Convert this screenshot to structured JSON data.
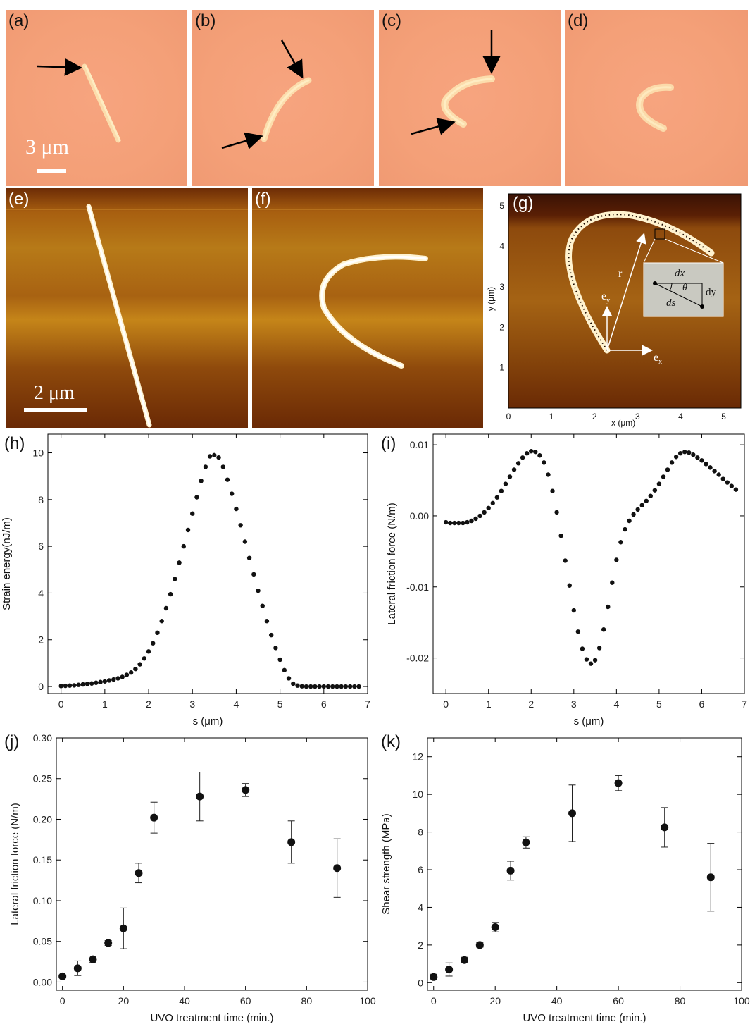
{
  "panels_top": {
    "a": {
      "label": "(a)",
      "scale": "3 μm"
    },
    "b": {
      "label": "(b)"
    },
    "c": {
      "label": "(c)"
    },
    "d": {
      "label": "(d)"
    }
  },
  "panels_mid": {
    "e": {
      "label": "(e)",
      "scale": "2 μm"
    },
    "f": {
      "label": "(f)"
    },
    "g": {
      "label": "(g)",
      "xlabel": "x (μm)",
      "ylabel": "y (μm)",
      "xticks": [
        "0",
        "1",
        "2",
        "3",
        "4",
        "5"
      ],
      "yticks": [
        "1",
        "2",
        "3",
        "4",
        "5"
      ],
      "annot_r": "r",
      "annot_ex": "e",
      "annot_ex_sub": "x",
      "annot_ey": "e",
      "annot_ey_sub": "y",
      "inset": {
        "dx": "dx",
        "dy": "dy",
        "ds": "ds",
        "theta": "θ"
      }
    }
  },
  "chart_data": [
    {
      "id": "h",
      "label": "(h)",
      "type": "scatter",
      "xlabel": "s (μm)",
      "ylabel": "Strain energy(nJ/m)",
      "xlim": [
        -0.3,
        7
      ],
      "ylim": [
        -0.3,
        10.8
      ],
      "xticks": [
        "0",
        "1",
        "2",
        "3",
        "4",
        "5",
        "6",
        "7"
      ],
      "yticks": [
        "0",
        "2",
        "4",
        "6",
        "8",
        "10"
      ],
      "x": [
        0,
        0.1,
        0.2,
        0.3,
        0.4,
        0.5,
        0.6,
        0.7,
        0.8,
        0.9,
        1.0,
        1.1,
        1.2,
        1.3,
        1.4,
        1.5,
        1.6,
        1.7,
        1.8,
        1.9,
        2.0,
        2.1,
        2.2,
        2.3,
        2.4,
        2.5,
        2.6,
        2.7,
        2.8,
        2.9,
        3.0,
        3.1,
        3.2,
        3.3,
        3.4,
        3.5,
        3.6,
        3.7,
        3.8,
        3.9,
        4.0,
        4.1,
        4.2,
        4.3,
        4.4,
        4.5,
        4.6,
        4.7,
        4.8,
        4.9,
        5.0,
        5.1,
        5.2,
        5.3,
        5.4,
        5.5,
        5.6,
        5.7,
        5.8,
        5.9,
        6.0,
        6.1,
        6.2,
        6.3,
        6.4,
        6.5,
        6.6,
        6.7,
        6.8
      ],
      "y": [
        0.02,
        0.03,
        0.04,
        0.05,
        0.07,
        0.09,
        0.11,
        0.13,
        0.16,
        0.19,
        0.22,
        0.26,
        0.3,
        0.35,
        0.41,
        0.5,
        0.6,
        0.75,
        0.95,
        1.2,
        1.5,
        1.85,
        2.3,
        2.8,
        3.35,
        3.95,
        4.6,
        5.3,
        6.0,
        6.7,
        7.4,
        8.1,
        8.8,
        9.4,
        9.85,
        9.9,
        9.8,
        9.4,
        8.85,
        8.25,
        7.6,
        6.9,
        6.2,
        5.5,
        4.8,
        4.1,
        3.45,
        2.8,
        2.2,
        1.65,
        1.15,
        0.7,
        0.35,
        0.12,
        0.04,
        0.01,
        0.0,
        0.0,
        0.0,
        0.0,
        0.0,
        0.0,
        0.0,
        0.0,
        0.0,
        0.0,
        0.0,
        0.0,
        0.0
      ]
    },
    {
      "id": "i",
      "label": "(i)",
      "type": "scatter",
      "xlabel": "s (μm)",
      "ylabel": "Lateral friction force (N/m)",
      "xlim": [
        -0.3,
        7
      ],
      "ylim": [
        -0.025,
        0.0115
      ],
      "xticks": [
        "0",
        "1",
        "2",
        "3",
        "4",
        "5",
        "6",
        "7"
      ],
      "yticks": [
        "-0.02",
        "-0.01",
        "0.00",
        "0.01"
      ],
      "ytick_values": [
        -0.02,
        -0.01,
        0.0,
        0.01
      ],
      "x": [
        0,
        0.1,
        0.2,
        0.3,
        0.4,
        0.5,
        0.6,
        0.7,
        0.8,
        0.9,
        1.0,
        1.1,
        1.2,
        1.3,
        1.4,
        1.5,
        1.6,
        1.7,
        1.8,
        1.9,
        2.0,
        2.1,
        2.2,
        2.3,
        2.4,
        2.5,
        2.6,
        2.7,
        2.8,
        2.9,
        3.0,
        3.1,
        3.2,
        3.3,
        3.4,
        3.5,
        3.6,
        3.7,
        3.8,
        3.9,
        4.0,
        4.1,
        4.2,
        4.3,
        4.4,
        4.5,
        4.6,
        4.7,
        4.8,
        4.9,
        5.0,
        5.1,
        5.2,
        5.3,
        5.4,
        5.5,
        5.6,
        5.7,
        5.8,
        5.9,
        6.0,
        6.1,
        6.2,
        6.3,
        6.4,
        6.5,
        6.6,
        6.7,
        6.8
      ],
      "y": [
        -0.0009,
        -0.001,
        -0.001,
        -0.001,
        -0.001,
        -0.0009,
        -0.0007,
        -0.0004,
        0.0,
        0.0005,
        0.0011,
        0.0018,
        0.0026,
        0.0035,
        0.0045,
        0.0055,
        0.0065,
        0.0074,
        0.0082,
        0.0088,
        0.0091,
        0.009,
        0.0085,
        0.0075,
        0.0058,
        0.0035,
        0.0005,
        -0.0028,
        -0.0063,
        -0.0098,
        -0.0133,
        -0.0163,
        -0.0187,
        -0.0202,
        -0.0208,
        -0.0203,
        -0.0186,
        -0.016,
        -0.0128,
        -0.0094,
        -0.0062,
        -0.0037,
        -0.0019,
        -0.0007,
        0.0002,
        0.0009,
        0.0015,
        0.0021,
        0.0028,
        0.0036,
        0.0045,
        0.0055,
        0.0065,
        0.0075,
        0.0083,
        0.0088,
        0.009,
        0.0089,
        0.0086,
        0.0082,
        0.0078,
        0.0073,
        0.0068,
        0.0063,
        0.0058,
        0.0052,
        0.0047,
        0.0042,
        0.0037
      ]
    },
    {
      "id": "j",
      "label": "(j)",
      "type": "scatter",
      "xlabel": "UVO treatment time (min.)",
      "ylabel": "Lateral friction force (N/m)",
      "xlim": [
        -2,
        100
      ],
      "ylim": [
        -0.01,
        0.3
      ],
      "xticks": [
        "0",
        "20",
        "40",
        "60",
        "80",
        "100"
      ],
      "yticks": [
        "0.00",
        "0.05",
        "0.10",
        "0.15",
        "0.20",
        "0.25",
        "0.30"
      ],
      "ytick_values": [
        0,
        0.05,
        0.1,
        0.15,
        0.2,
        0.25,
        0.3
      ],
      "x": [
        0,
        5,
        10,
        15,
        20,
        25,
        30,
        45,
        60,
        75,
        90
      ],
      "y": [
        0.007,
        0.017,
        0.028,
        0.048,
        0.066,
        0.134,
        0.202,
        0.228,
        0.236,
        0.172,
        0.14
      ],
      "err": [
        0.002,
        0.009,
        0.004,
        0.003,
        0.025,
        0.012,
        0.019,
        0.03,
        0.008,
        0.026,
        0.036
      ]
    },
    {
      "id": "k",
      "label": "(k)",
      "type": "scatter",
      "xlabel": "UVO treatment time (min.)",
      "ylabel": "Shear strength (MPa)",
      "xlim": [
        -2,
        100
      ],
      "ylim": [
        -0.4,
        13
      ],
      "xticks": [
        "0",
        "20",
        "40",
        "60",
        "80",
        "100"
      ],
      "yticks": [
        "0",
        "2",
        "4",
        "6",
        "8",
        "10",
        "12"
      ],
      "ytick_values": [
        0,
        2,
        4,
        6,
        8,
        10,
        12
      ],
      "x": [
        0,
        5,
        10,
        15,
        20,
        25,
        30,
        45,
        60,
        75,
        90
      ],
      "y": [
        0.3,
        0.7,
        1.2,
        2.0,
        2.95,
        5.95,
        7.45,
        9.0,
        10.6,
        8.25,
        5.6
      ],
      "err": [
        0.15,
        0.35,
        0.15,
        0.12,
        0.25,
        0.5,
        0.3,
        1.5,
        0.4,
        1.05,
        1.8
      ]
    }
  ]
}
